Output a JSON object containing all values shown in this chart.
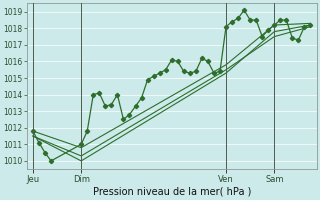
{
  "title": "Pression niveau de la mer( hPa )",
  "background_color": "#cceaea",
  "grid_color": "#add8d8",
  "line_color": "#2d6e2d",
  "vline_color": "#4a6a4a",
  "ylim": [
    1009.5,
    1019.5
  ],
  "yticks": [
    1010,
    1011,
    1012,
    1013,
    1014,
    1015,
    1016,
    1017,
    1018,
    1019
  ],
  "xmin": -6,
  "xmax": 282,
  "day_positions": [
    0,
    48,
    192,
    240
  ],
  "day_labels": [
    "Jeu",
    "Dim",
    "Ven",
    "Sam"
  ],
  "series1_x": [
    0,
    6,
    12,
    18,
    48,
    54,
    60,
    66,
    72,
    78,
    84,
    90,
    96,
    102,
    108,
    114,
    120,
    126,
    132,
    138,
    144,
    150,
    156,
    162,
    168,
    174,
    180,
    186,
    192,
    198,
    204,
    210,
    216,
    222,
    228,
    234,
    240,
    246,
    252,
    258,
    264,
    270,
    276
  ],
  "series1_y": [
    1011.8,
    1011.1,
    1010.5,
    1010.0,
    1011.0,
    1011.8,
    1014.0,
    1014.1,
    1013.3,
    1013.4,
    1014.0,
    1012.5,
    1012.8,
    1013.3,
    1013.8,
    1014.9,
    1015.1,
    1015.3,
    1015.5,
    1016.1,
    1016.0,
    1015.4,
    1015.3,
    1015.4,
    1016.2,
    1016.0,
    1015.3,
    1015.4,
    1018.1,
    1018.4,
    1018.6,
    1019.1,
    1018.5,
    1018.5,
    1017.5,
    1017.9,
    1018.2,
    1018.5,
    1018.5,
    1017.4,
    1017.3,
    1018.1,
    1018.2
  ],
  "series2_x": [
    0,
    48,
    192,
    240,
    276
  ],
  "series2_y": [
    1011.5,
    1010.0,
    1015.3,
    1017.8,
    1018.2
  ],
  "series3_x": [
    0,
    48,
    192,
    240,
    276
  ],
  "series3_y": [
    1011.8,
    1010.8,
    1015.8,
    1018.2,
    1018.3
  ],
  "series4_x": [
    0,
    48,
    192,
    240,
    276
  ],
  "series4_y": [
    1011.5,
    1010.3,
    1015.5,
    1017.5,
    1018.1
  ]
}
